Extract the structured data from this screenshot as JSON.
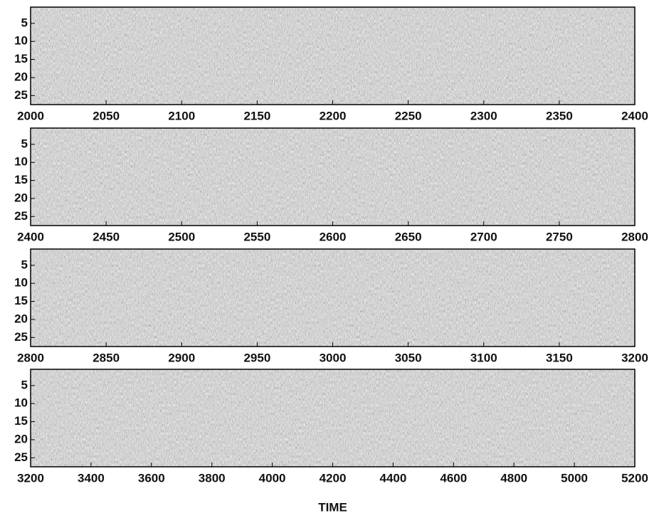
{
  "chart_data": [
    {
      "type": "heatmap",
      "xlim": [
        2000,
        2400
      ],
      "xticks": [
        2000,
        2050,
        2100,
        2150,
        2200,
        2250,
        2300,
        2350,
        2400
      ],
      "ylim": [
        0.5,
        27.5
      ],
      "yticks": [
        5,
        10,
        15,
        20,
        25
      ],
      "y_reversed": true
    },
    {
      "type": "heatmap",
      "xlim": [
        2400,
        2800
      ],
      "xticks": [
        2400,
        2450,
        2500,
        2550,
        2600,
        2650,
        2700,
        2750,
        2800
      ],
      "ylim": [
        0.5,
        27.5
      ],
      "yticks": [
        5,
        10,
        15,
        20,
        25
      ],
      "y_reversed": true
    },
    {
      "type": "heatmap",
      "xlim": [
        2800,
        3200
      ],
      "xticks": [
        2800,
        2850,
        2900,
        2950,
        3000,
        3050,
        3100,
        3150,
        3200
      ],
      "ylim": [
        0.5,
        27.5
      ],
      "yticks": [
        5,
        10,
        15,
        20,
        25
      ],
      "y_reversed": true
    },
    {
      "type": "heatmap",
      "xlim": [
        3200,
        5200
      ],
      "xticks": [
        3200,
        3400,
        3600,
        3800,
        4000,
        4200,
        4400,
        4600,
        4800,
        5000,
        5200
      ],
      "ylim": [
        0.5,
        27.5
      ],
      "yticks": [
        5,
        10,
        15,
        20,
        25
      ],
      "y_reversed": true,
      "xlabel": "TIME"
    }
  ]
}
